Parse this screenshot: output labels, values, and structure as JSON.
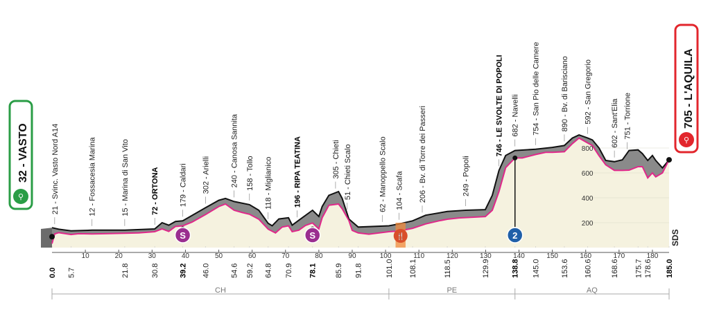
{
  "chart_data": {
    "type": "area",
    "xlim": [
      0,
      185
    ],
    "ylim": [
      0,
      1000
    ],
    "x_ticks": [
      10,
      20,
      30,
      40,
      50,
      60,
      70,
      80,
      90,
      100,
      110,
      120,
      130,
      140,
      150,
      160,
      170,
      180
    ],
    "y_ticks": [
      200,
      400,
      600,
      800
    ],
    "profile": [
      [
        0,
        32
      ],
      [
        0.8,
        110
      ],
      [
        2,
        120
      ],
      [
        5.7,
        105
      ],
      [
        8,
        112
      ],
      [
        12,
        110
      ],
      [
        16,
        112
      ],
      [
        21.8,
        115
      ],
      [
        26,
        118
      ],
      [
        30.8,
        128
      ],
      [
        33,
        150
      ],
      [
        35,
        130
      ],
      [
        37,
        170
      ],
      [
        39.2,
        175
      ],
      [
        42,
        205
      ],
      [
        46,
        265
      ],
      [
        50,
        330
      ],
      [
        52,
        350
      ],
      [
        54.6,
        300
      ],
      [
        57,
        282
      ],
      [
        59.2,
        268
      ],
      [
        62,
        228
      ],
      [
        64.8,
        148
      ],
      [
        67,
        118
      ],
      [
        69,
        165
      ],
      [
        70.9,
        175
      ],
      [
        72,
        128
      ],
      [
        74,
        140
      ],
      [
        76,
        178
      ],
      [
        78.1,
        198
      ],
      [
        80,
        150
      ],
      [
        81,
        240
      ],
      [
        83,
        340
      ],
      [
        85.9,
        350
      ],
      [
        87,
        312
      ],
      [
        89,
        218
      ],
      [
        90,
        138
      ],
      [
        91.8,
        118
      ],
      [
        95,
        108
      ],
      [
        101,
        128
      ],
      [
        104,
        133
      ],
      [
        108.1,
        155
      ],
      [
        112,
        190
      ],
      [
        116,
        215
      ],
      [
        118.5,
        228
      ],
      [
        122,
        238
      ],
      [
        126,
        244
      ],
      [
        129.9,
        249
      ],
      [
        132,
        300
      ],
      [
        134,
        450
      ],
      [
        136,
        642
      ],
      [
        138.8,
        720
      ],
      [
        141,
        720
      ],
      [
        145,
        748
      ],
      [
        148,
        765
      ],
      [
        150,
        765
      ],
      [
        153.6,
        770
      ],
      [
        156,
        835
      ],
      [
        158,
        880
      ],
      [
        160.6,
        840
      ],
      [
        162,
        820
      ],
      [
        164,
        738
      ],
      [
        166,
        665
      ],
      [
        168.6,
        620
      ],
      [
        171,
        620
      ],
      [
        173,
        622
      ],
      [
        175.7,
        650
      ],
      [
        177,
        650
      ],
      [
        178.6,
        560
      ],
      [
        180,
        600
      ],
      [
        181,
        568
      ],
      [
        183,
        600
      ],
      [
        185,
        705
      ]
    ],
    "profile_upper": [
      [
        0,
        160
      ],
      [
        2,
        148
      ],
      [
        5.7,
        135
      ],
      [
        12,
        140
      ],
      [
        21.8,
        140
      ],
      [
        30.8,
        150
      ],
      [
        33,
        200
      ],
      [
        35,
        180
      ],
      [
        37,
        210
      ],
      [
        39.2,
        215
      ],
      [
        46,
        320
      ],
      [
        50,
        380
      ],
      [
        52,
        395
      ],
      [
        54.6,
        370
      ],
      [
        59.2,
        345
      ],
      [
        62,
        300
      ],
      [
        64.8,
        195
      ],
      [
        66,
        175
      ],
      [
        68,
        230
      ],
      [
        70.9,
        240
      ],
      [
        72,
        180
      ],
      [
        74,
        220
      ],
      [
        78.1,
        300
      ],
      [
        80,
        250
      ],
      [
        81,
        330
      ],
      [
        83,
        420
      ],
      [
        85.9,
        450
      ],
      [
        87,
        395
      ],
      [
        89,
        230
      ],
      [
        91.8,
        165
      ],
      [
        101,
        175
      ],
      [
        104,
        190
      ],
      [
        108.1,
        215
      ],
      [
        112,
        260
      ],
      [
        118.5,
        290
      ],
      [
        124,
        300
      ],
      [
        129.9,
        305
      ],
      [
        132,
        420
      ],
      [
        134,
        620
      ],
      [
        136,
        740
      ],
      [
        138.8,
        780
      ],
      [
        145,
        790
      ],
      [
        150,
        805
      ],
      [
        153.6,
        820
      ],
      [
        156,
        880
      ],
      [
        158,
        905
      ],
      [
        160.6,
        880
      ],
      [
        162,
        865
      ],
      [
        164,
        800
      ],
      [
        166,
        700
      ],
      [
        168.6,
        690
      ],
      [
        171,
        705
      ],
      [
        173,
        780
      ],
      [
        175.7,
        785
      ],
      [
        177,
        755
      ],
      [
        178.6,
        700
      ],
      [
        180,
        740
      ],
      [
        181,
        700
      ],
      [
        183,
        640
      ],
      [
        185,
        705
      ]
    ],
    "start": {
      "name": "VASTO",
      "altitude": "32"
    },
    "finish": {
      "name": "L'AQUILA",
      "altitude": "705"
    },
    "km_labels": [
      {
        "km": 0,
        "text": "0.0",
        "bold": true
      },
      {
        "km": 5.7,
        "text": "5.7",
        "bold": false
      },
      {
        "km": 21.8,
        "text": "21.8",
        "bold": false
      },
      {
        "km": 30.8,
        "text": "30.8",
        "bold": false
      },
      {
        "km": 39.2,
        "text": "39.2",
        "bold": true
      },
      {
        "km": 46.0,
        "text": "46.0",
        "bold": false
      },
      {
        "km": 54.6,
        "text": "54.6",
        "bold": false
      },
      {
        "km": 59.2,
        "text": "59.2",
        "bold": false
      },
      {
        "km": 64.8,
        "text": "64.8",
        "bold": false
      },
      {
        "km": 70.9,
        "text": "70.9",
        "bold": false
      },
      {
        "km": 78.1,
        "text": "78.1",
        "bold": true
      },
      {
        "km": 85.9,
        "text": "85.9",
        "bold": false
      },
      {
        "km": 91.8,
        "text": "91.8",
        "bold": false
      },
      {
        "km": 101.0,
        "text": "101.0",
        "bold": false
      },
      {
        "km": 108.1,
        "text": "108.1",
        "bold": false
      },
      {
        "km": 118.5,
        "text": "118.5",
        "bold": false
      },
      {
        "km": 129.9,
        "text": "129.9",
        "bold": false
      },
      {
        "km": 138.8,
        "text": "138.8",
        "bold": true
      },
      {
        "km": 145.0,
        "text": "145.0",
        "bold": false
      },
      {
        "km": 153.6,
        "text": "153.6",
        "bold": false
      },
      {
        "km": 160.6,
        "text": "160.6",
        "bold": false
      },
      {
        "km": 168.6,
        "text": "168.6",
        "bold": false
      },
      {
        "km": 175.7,
        "text": "175.7",
        "bold": false
      },
      {
        "km": 178.6,
        "text": "178.6",
        "bold": false
      },
      {
        "km": 185.0,
        "text": "185.0",
        "bold": true
      }
    ],
    "waypoints": [
      {
        "km": 0.8,
        "text": "21 - Svinc. Vasto Nord A14",
        "bold": false
      },
      {
        "km": 12,
        "text": "12 - Fossacesia Marina",
        "bold": false
      },
      {
        "km": 21.8,
        "text": "15 - Marina di San Vito",
        "bold": false
      },
      {
        "km": 30.8,
        "text": "72 - ORTONA",
        "bold": true
      },
      {
        "km": 39.2,
        "text": "179 - Caldari",
        "bold": false
      },
      {
        "km": 46.0,
        "text": "302 - Arielli",
        "bold": false
      },
      {
        "km": 54.6,
        "text": "240 - Canosa Sannita",
        "bold": false
      },
      {
        "km": 59.2,
        "text": "158 - Tollo",
        "bold": false
      },
      {
        "km": 64.8,
        "text": "118 - Miglianico",
        "bold": false
      },
      {
        "km": 73.5,
        "text": "196 - RIPA TEATINA",
        "bold": true
      },
      {
        "km": 85.0,
        "text": "305 - Chieti",
        "bold": false
      },
      {
        "km": 88.5,
        "text": "51 - Chieti Scalo",
        "bold": false
      },
      {
        "km": 99.0,
        "text": "62 - Manoppello Scalo",
        "bold": false
      },
      {
        "km": 104.0,
        "text": "104 - Scafa",
        "bold": false
      },
      {
        "km": 111.0,
        "text": "206 - Bv. di Torre dei Passeri",
        "bold": false
      },
      {
        "km": 124.0,
        "text": "249 - Popoli",
        "bold": false
      },
      {
        "km": 134.0,
        "text": "746 - LE SVOLTE DI POPOLI",
        "bold": true
      },
      {
        "km": 138.8,
        "text": "682 - Navelli",
        "bold": false
      },
      {
        "km": 145.0,
        "text": "754 - San Pio delle Camere",
        "bold": false
      },
      {
        "km": 153.6,
        "text": "890 - Bv. di Barisciano",
        "bold": false
      },
      {
        "km": 160.6,
        "text": "592 - San Gregorio",
        "bold": false
      },
      {
        "km": 168.6,
        "text": "602 - Sant'Elia",
        "bold": false
      },
      {
        "km": 172.4,
        "text": "751 - Torrione",
        "bold": false
      }
    ],
    "sprints": [
      {
        "km": 39.2,
        "symbol": "S"
      },
      {
        "km": 78.1,
        "symbol": "S"
      }
    ],
    "kom": [
      {
        "km": 138.8,
        "category": "2"
      }
    ],
    "feed_zone": {
      "km_start": 103,
      "km_end": 106
    },
    "regions": [
      {
        "name": "CH",
        "km_start": 0,
        "km_end": 101
      },
      {
        "name": "PE",
        "km_start": 101,
        "km_end": 138.8
      },
      {
        "name": "AQ",
        "km_start": 138.8,
        "km_end": 185
      }
    ],
    "watermark": "SDS",
    "colors": {
      "start_green": "#2a9d46",
      "finish_red": "#e2262c",
      "profile_pink": "#e0288a",
      "sprint_purple": "#9a2e8f",
      "kom_blue": "#1f5fa8",
      "feed_orange": "#f08a3c",
      "background_fill": "#f5f2df",
      "mountain_gray": "#8a8a8a"
    }
  }
}
